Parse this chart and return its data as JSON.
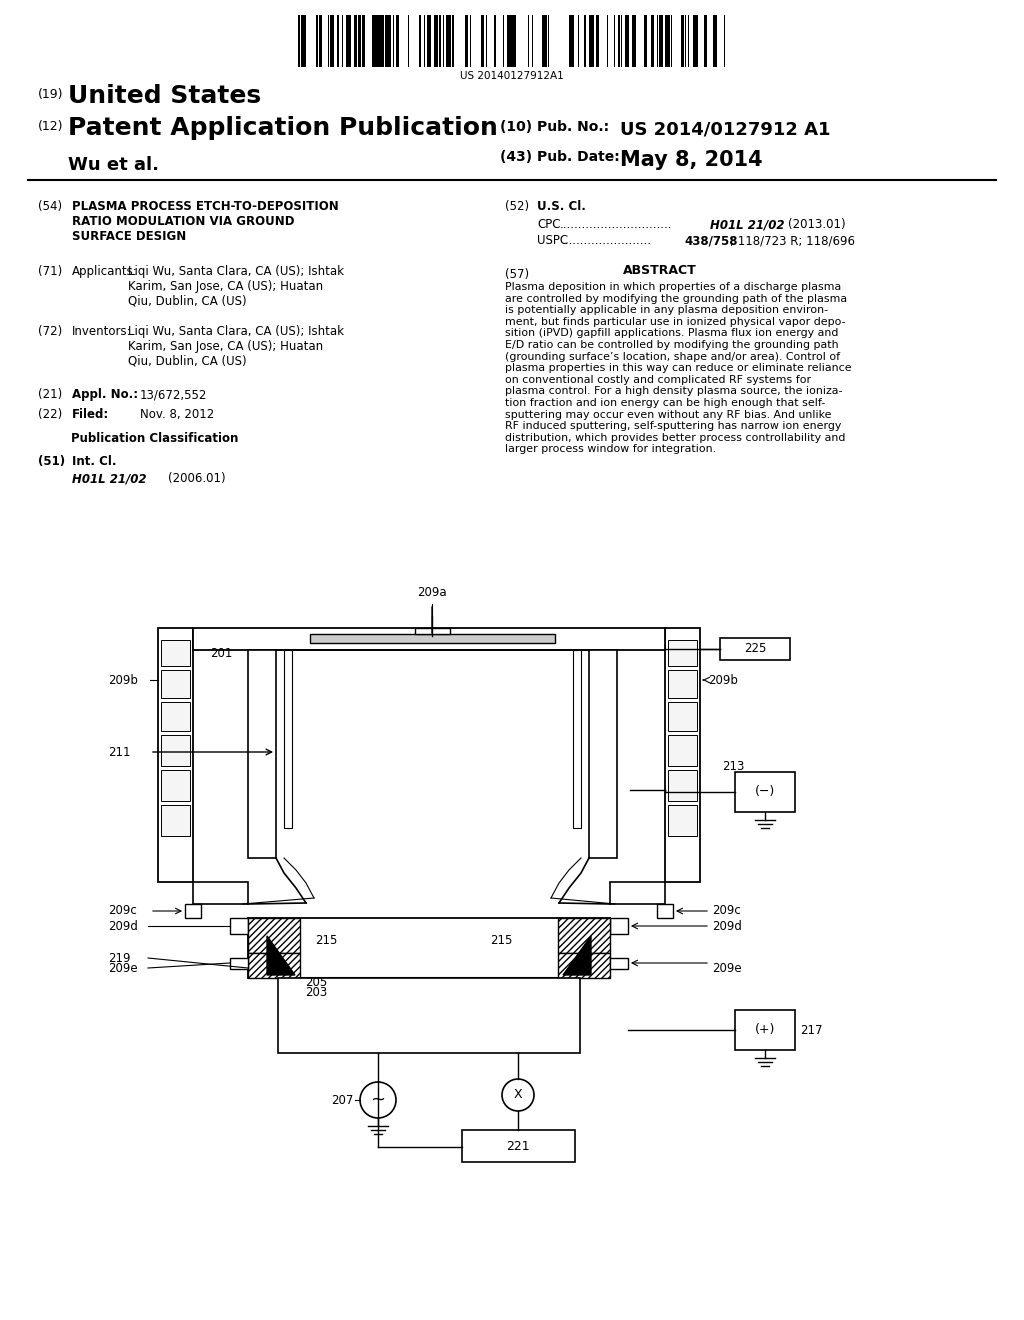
{
  "bg_color": "#ffffff",
  "barcode_text": "US 20140127912A1",
  "header": {
    "number_19": "(19)",
    "united_states": "United States",
    "number_12": "(12)",
    "patent_app_pub": "Patent Application Publication",
    "author": "Wu et al.",
    "pub_no_label": "(10) Pub. No.:",
    "pub_no_value": "US 2014/0127912 A1",
    "pub_date_label": "(43) Pub. Date:",
    "pub_date_value": "May 8, 2014"
  },
  "left_col": {
    "item54_num": "(54)",
    "item54_text": "PLASMA PROCESS ETCH-TO-DEPOSITION\nRATIO MODULATION VIA GROUND\nSURFACE DESIGN",
    "item71_num": "(71)",
    "item71_label": "Applicants:",
    "item71_text": "Liqi Wu, Santa Clara, CA (US); Ishtak\nKarim, San Jose, CA (US); Huatan\nQiu, Dublin, CA (US)",
    "item72_num": "(72)",
    "item72_label": "Inventors:",
    "item72_text": "Liqi Wu, Santa Clara, CA (US); Ishtak\nKarim, San Jose, CA (US); Huatan\nQiu, Dublin, CA (US)",
    "item21_num": "(21)",
    "item21_label": "Appl. No.:",
    "item21_value": "13/672,552",
    "item22_num": "(22)",
    "item22_label": "Filed:",
    "item22_value": "Nov. 8, 2012",
    "pub_class_title": "Publication Classification",
    "item51_num": "(51)",
    "item51_label": "Int. Cl.",
    "item51_class": "H01L 21/02",
    "item51_date": "(2006.01)"
  },
  "right_col": {
    "item52_num": "(52)",
    "item52_label": "U.S. Cl.",
    "cpc_label": "CPC",
    "cpc_class": "H01L 21/02",
    "cpc_year": "(2013.01)",
    "uspc_label": "USPC",
    "uspc_value": "438/758",
    "uspc_other": "; 118/723 R; 118/696",
    "item57_num": "(57)",
    "abstract_title": "ABSTRACT",
    "abstract_text": "Plasma deposition in which properties of a discharge plasma\nare controlled by modifying the grounding path of the plasma\nis potentially applicable in any plasma deposition environ-\nment, but finds particular use in ionized physical vapor depo-\nsition (iPVD) gapfill applications. Plasma flux ion energy and\nE/D ratio can be controlled by modifying the grounding path\n(grounding surface’s location, shape and/or area). Control of\nplasma properties in this way can reduce or eliminate reliance\non conventional costly and complicated RF systems for\nplasma control. For a high density plasma source, the ioniza-\ntion fraction and ion energy can be high enough that self-\nsputtering may occur even without any RF bias. And unlike\nRF induced sputtering, self-sputtering has narrow ion energy\ndistribution, which provides better process controllability and\nlarger process window for integration."
  },
  "diagram": {
    "label_209a": "209a",
    "label_225": "225",
    "label_201": "201",
    "label_209b_left": "209b",
    "label_209b_right": "209b",
    "label_211": "211",
    "label_213": "213",
    "label_minus": "(−)",
    "label_209c_left": "209c",
    "label_209c_right": "209c",
    "label_209d_left": "209d",
    "label_209d_right": "209d",
    "label_215_left": "215",
    "label_215_right": "215",
    "label_219": "219",
    "label_209e_left": "209e",
    "label_209e_right": "209e",
    "label_205": "205",
    "label_203": "203",
    "label_207": "207",
    "label_221": "221",
    "label_plus": "(+)",
    "label_217": "217"
  }
}
